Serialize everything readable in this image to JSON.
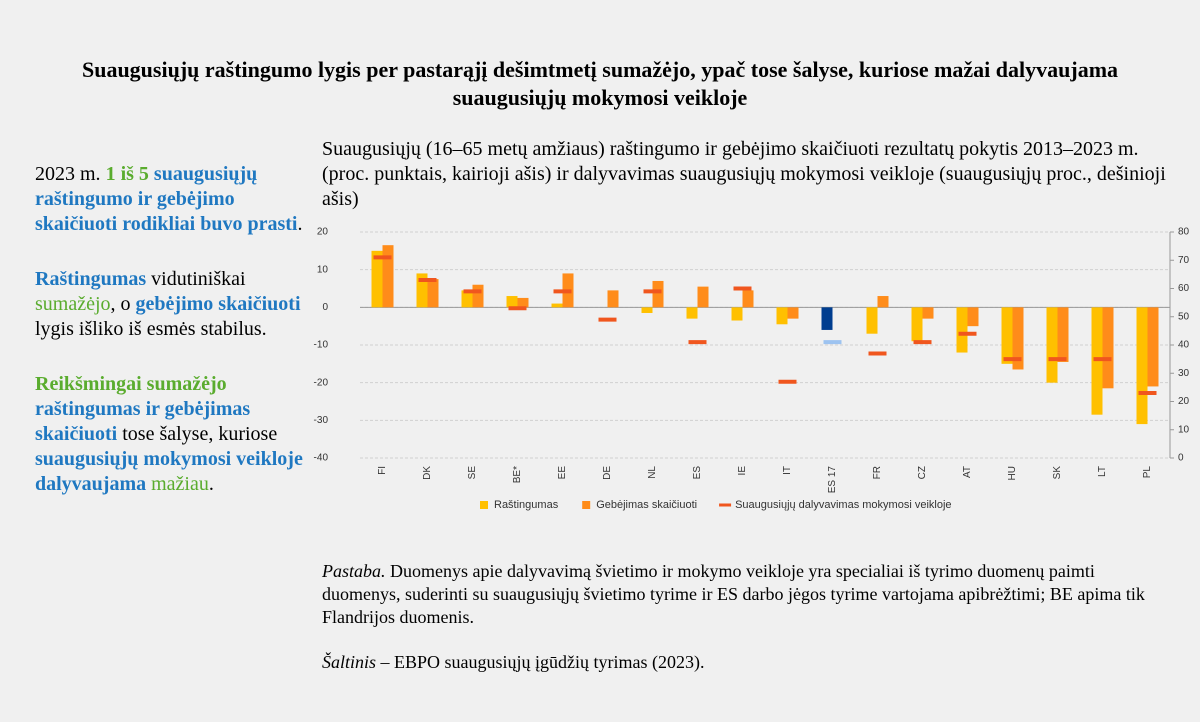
{
  "title": "Suaugusiųjų raštingumo lygis per pastarąjį dešimtmetį sumažėjo, ypač tose šalyse, kuriose mažai dalyvaujama suaugusiųjų mokymosi veikloje",
  "sidebar": [
    [
      "2023 m. ",
      "1 iš 5",
      " suaugusiųjų raštingumo ir gebėjimo skaičiuoti rodikliai buvo prasti",
      "."
    ],
    [
      "Raštingumas",
      " vidutiniškai ",
      "sumažėjo",
      ", o ",
      "gebėjimo skaičiuoti",
      " lygis išliko iš esmės stabilus."
    ],
    [
      "Reikšmingai sumažėjo",
      " raštingumas ir gebėjimas skaičiuoti",
      " tose šalyse, kuriose ",
      "suaugusiųjų mokymosi veikloje dalyvaujama",
      " mažiau",
      "."
    ]
  ],
  "note": [
    "Pastaba.",
    " Duomenys apie dalyvavimą švietimo ir mokymo veikloje yra specialiai iš tyrimo duomenų paimti duomenys, suderinti su suaugusiųjų švietimo tyrime ir ES darbo jėgos tyrime vartojama apibrėžtimi; BE apima tik Flandrijos duomenis."
  ],
  "source": [
    "Šaltinis",
    " – EBPO suaugusiųjų įgūdžių tyrimas (2023)."
  ],
  "chart_data": {
    "type": "bar",
    "subtitle": "Suaugusiųjų (16–65 metų amžiaus) raštingumo ir gebėjimo skaičiuoti rezultatų pokytis 2013–2023 m. (proc. punktais, kairioji ašis) ir dalyvavimas suaugusiųjų mokymosi veikloje (suaugusiųjų proc., dešinioji ašis)",
    "categories": [
      "FI",
      "DK",
      "SE",
      "BE*",
      "EE",
      "DE",
      "NL",
      "ES",
      "IE",
      "IT",
      "ES 17",
      "FR",
      "CZ",
      "AT",
      "HU",
      "SK",
      "LT",
      "PL"
    ],
    "series": [
      {
        "name": "Raštingumas",
        "color": "#ffc000",
        "colors": [
          "#ffc000",
          "#ffc000",
          "#ffc000",
          "#ffc000",
          "#ffc000",
          "#ffc000",
          "#ffc000",
          "#ffc000",
          "#ffc000",
          "#ffc000",
          "#003d8f",
          "#ffc000",
          "#ffc000",
          "#ffc000",
          "#ffc000",
          "#ffc000",
          "#ffc000",
          "#ffc000"
        ],
        "values": [
          15,
          9,
          4.5,
          3,
          1,
          0,
          -1.5,
          -3,
          -3.5,
          -4.5,
          -6,
          -7,
          -9,
          -12,
          -15,
          -20,
          -28.5,
          -31
        ]
      },
      {
        "name": "Gebėjimas skaičiuoti",
        "color": "#ff8c1a",
        "values": [
          16.5,
          7.5,
          6,
          2.5,
          9,
          4.5,
          7,
          5.5,
          4.5,
          -3,
          null,
          3,
          -3,
          -5,
          -16.5,
          -14.5,
          -21.5,
          -21
        ]
      },
      {
        "name": "Suaugusiųjų dalyvavimas mokymosi veikloje",
        "color": "#f0561e",
        "axis": "y2",
        "colors": [
          "#f0561e",
          "#f0561e",
          "#f0561e",
          "#f0561e",
          "#f0561e",
          "#f0561e",
          "#f0561e",
          "#f0561e",
          "#f0561e",
          "#f0561e",
          "#9dc3f0",
          "#f0561e",
          "#f0561e",
          "#f0561e",
          "#f0561e",
          "#f0561e",
          "#f0561e",
          "#f0561e"
        ],
        "values": [
          71,
          63,
          59,
          53,
          59,
          49,
          59,
          41,
          60,
          27,
          41,
          37,
          41,
          44,
          35,
          35,
          35,
          23
        ]
      }
    ],
    "ylim": [
      -40,
      20
    ],
    "yticks": [
      -40,
      -30,
      -20,
      -10,
      0,
      10,
      20
    ],
    "y2lim": [
      0,
      80
    ],
    "y2ticks": [
      0,
      10,
      20,
      30,
      40,
      50,
      60,
      70,
      80
    ],
    "grid": true,
    "legend": "bottom"
  }
}
